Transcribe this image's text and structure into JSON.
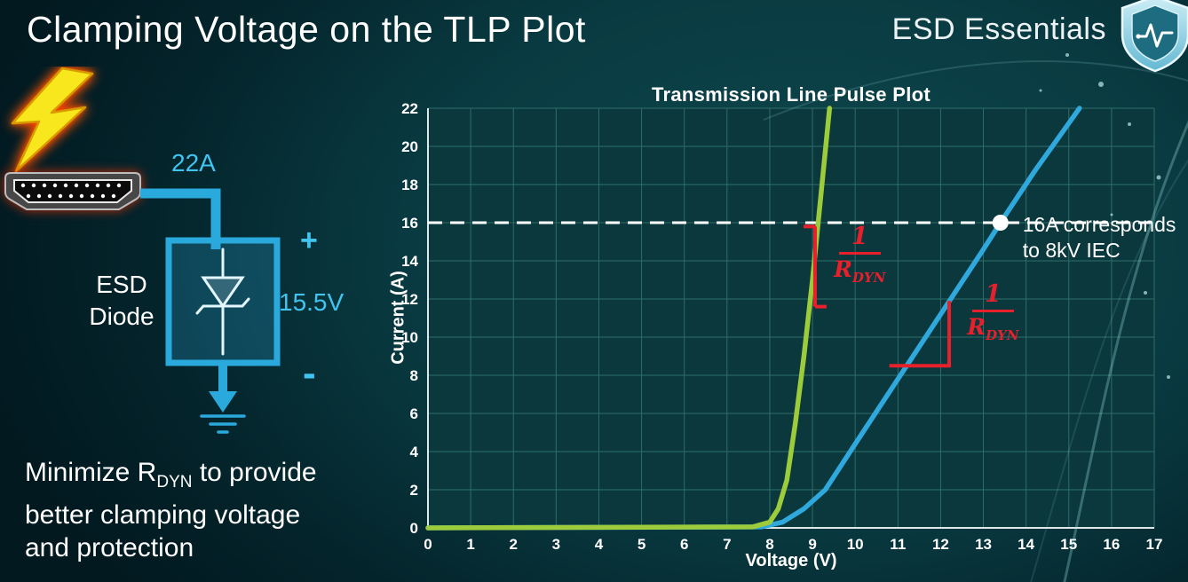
{
  "slide": {
    "title": "Clamping Voltage on the TLP Plot",
    "brand": "ESD Essentials"
  },
  "diagram": {
    "surge_current": "22A",
    "clamp_voltage": "15.5V",
    "polarity_plus": "+",
    "polarity_minus": "-",
    "component": {
      "line1": "ESD",
      "line2": "Diode"
    }
  },
  "caption": {
    "line1_pre": "Minimize R",
    "line1_sub": "DYN",
    "line1_post": " to provide",
    "line2": "better clamping voltage",
    "line3": "and protection"
  },
  "chart_data": {
    "type": "line",
    "title": "Transmission Line Pulse Plot",
    "xlabel": "Voltage (V)",
    "ylabel": "Current (A)",
    "xlim": [
      0,
      17
    ],
    "ylim": [
      0,
      22
    ],
    "x_tick_step": 1,
    "y_tick_step": 2,
    "grid": true,
    "legend": "none",
    "colors": {
      "plot_bg": "#0a383c",
      "grid": "#2e6e6a",
      "axis": "#dde9e9",
      "reference": "#ffffff",
      "annotation": "#e8202b"
    },
    "series": [
      {
        "name": "blue-curve-higher-rdyn",
        "color": "#2fa9dd",
        "points": [
          [
            0,
            0
          ],
          [
            7.8,
            0.05
          ],
          [
            8.3,
            0.3
          ],
          [
            8.8,
            1.0
          ],
          [
            9.3,
            2.0
          ],
          [
            10.0,
            4.4
          ],
          [
            11.0,
            7.8
          ],
          [
            12.0,
            11.2
          ],
          [
            13.0,
            14.6
          ],
          [
            13.4,
            16.0
          ],
          [
            14.2,
            18.7
          ],
          [
            15.25,
            22
          ]
        ]
      },
      {
        "name": "green-curve-lower-rdyn",
        "color": "#9ccb3b",
        "points": [
          [
            0,
            0
          ],
          [
            7.6,
            0.05
          ],
          [
            8.0,
            0.3
          ],
          [
            8.2,
            1.0
          ],
          [
            8.4,
            2.5
          ],
          [
            8.6,
            5.5
          ],
          [
            8.8,
            9.0
          ],
          [
            9.0,
            13.0
          ],
          [
            9.2,
            17.5
          ],
          [
            9.4,
            22
          ]
        ]
      }
    ],
    "reference_line": {
      "y": 16,
      "style": "dashed"
    },
    "marker": {
      "x": 13.4,
      "y": 16
    },
    "annotations": {
      "iec_note": {
        "lines": [
          "16A corresponds",
          "to 8kV IEC"
        ]
      },
      "green_slope": {
        "frac_num": "1",
        "frac_den_base": "R",
        "frac_den_sub": "DYN",
        "line_x": 9.06,
        "line_y1": 11.6,
        "line_y2": 15.8,
        "label_x": 9.5,
        "label_y": 15.9
      },
      "blue_slope": {
        "frac_num": "1",
        "frac_den_base": "R",
        "frac_den_sub": "DYN",
        "run_x1": 10.8,
        "corner_x": 12.2,
        "run_y": 8.5,
        "rise_y2": 11.9,
        "label_x": 12.62,
        "label_y": 12.9
      }
    }
  }
}
